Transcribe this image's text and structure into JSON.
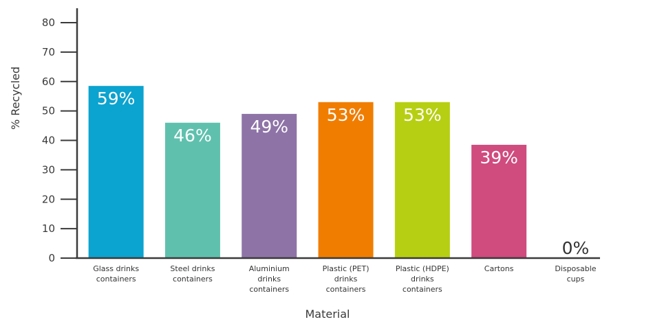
{
  "chart_data": {
    "type": "bar",
    "title": "",
    "xlabel": "Material",
    "ylabel": "% Recycled",
    "ylim": [
      0,
      80
    ],
    "yticks": [
      0,
      10,
      20,
      30,
      40,
      50,
      60,
      70,
      80
    ],
    "grid": false,
    "categories": [
      [
        "Glass drinks",
        "containers"
      ],
      [
        "Steel drinks",
        "containers"
      ],
      [
        "Aluminium",
        "drinks",
        "containers"
      ],
      [
        "Plastic (PET)",
        "drinks",
        "containers"
      ],
      [
        "Plastic (HDPE)",
        "drinks",
        "containers"
      ],
      [
        "Cartons"
      ],
      [
        "Disposable",
        "cups"
      ]
    ],
    "values": [
      58.5,
      46,
      49,
      53,
      53,
      38.5,
      0
    ],
    "data_labels": [
      "59%",
      "46%",
      "49%",
      "53%",
      "53%",
      "39%",
      "0%"
    ],
    "colors": [
      "#0ba3d0",
      "#5fc1ad",
      "#8e73a7",
      "#f07d00",
      "#b7cf12",
      "#d04b7e",
      "#cccccc"
    ]
  }
}
